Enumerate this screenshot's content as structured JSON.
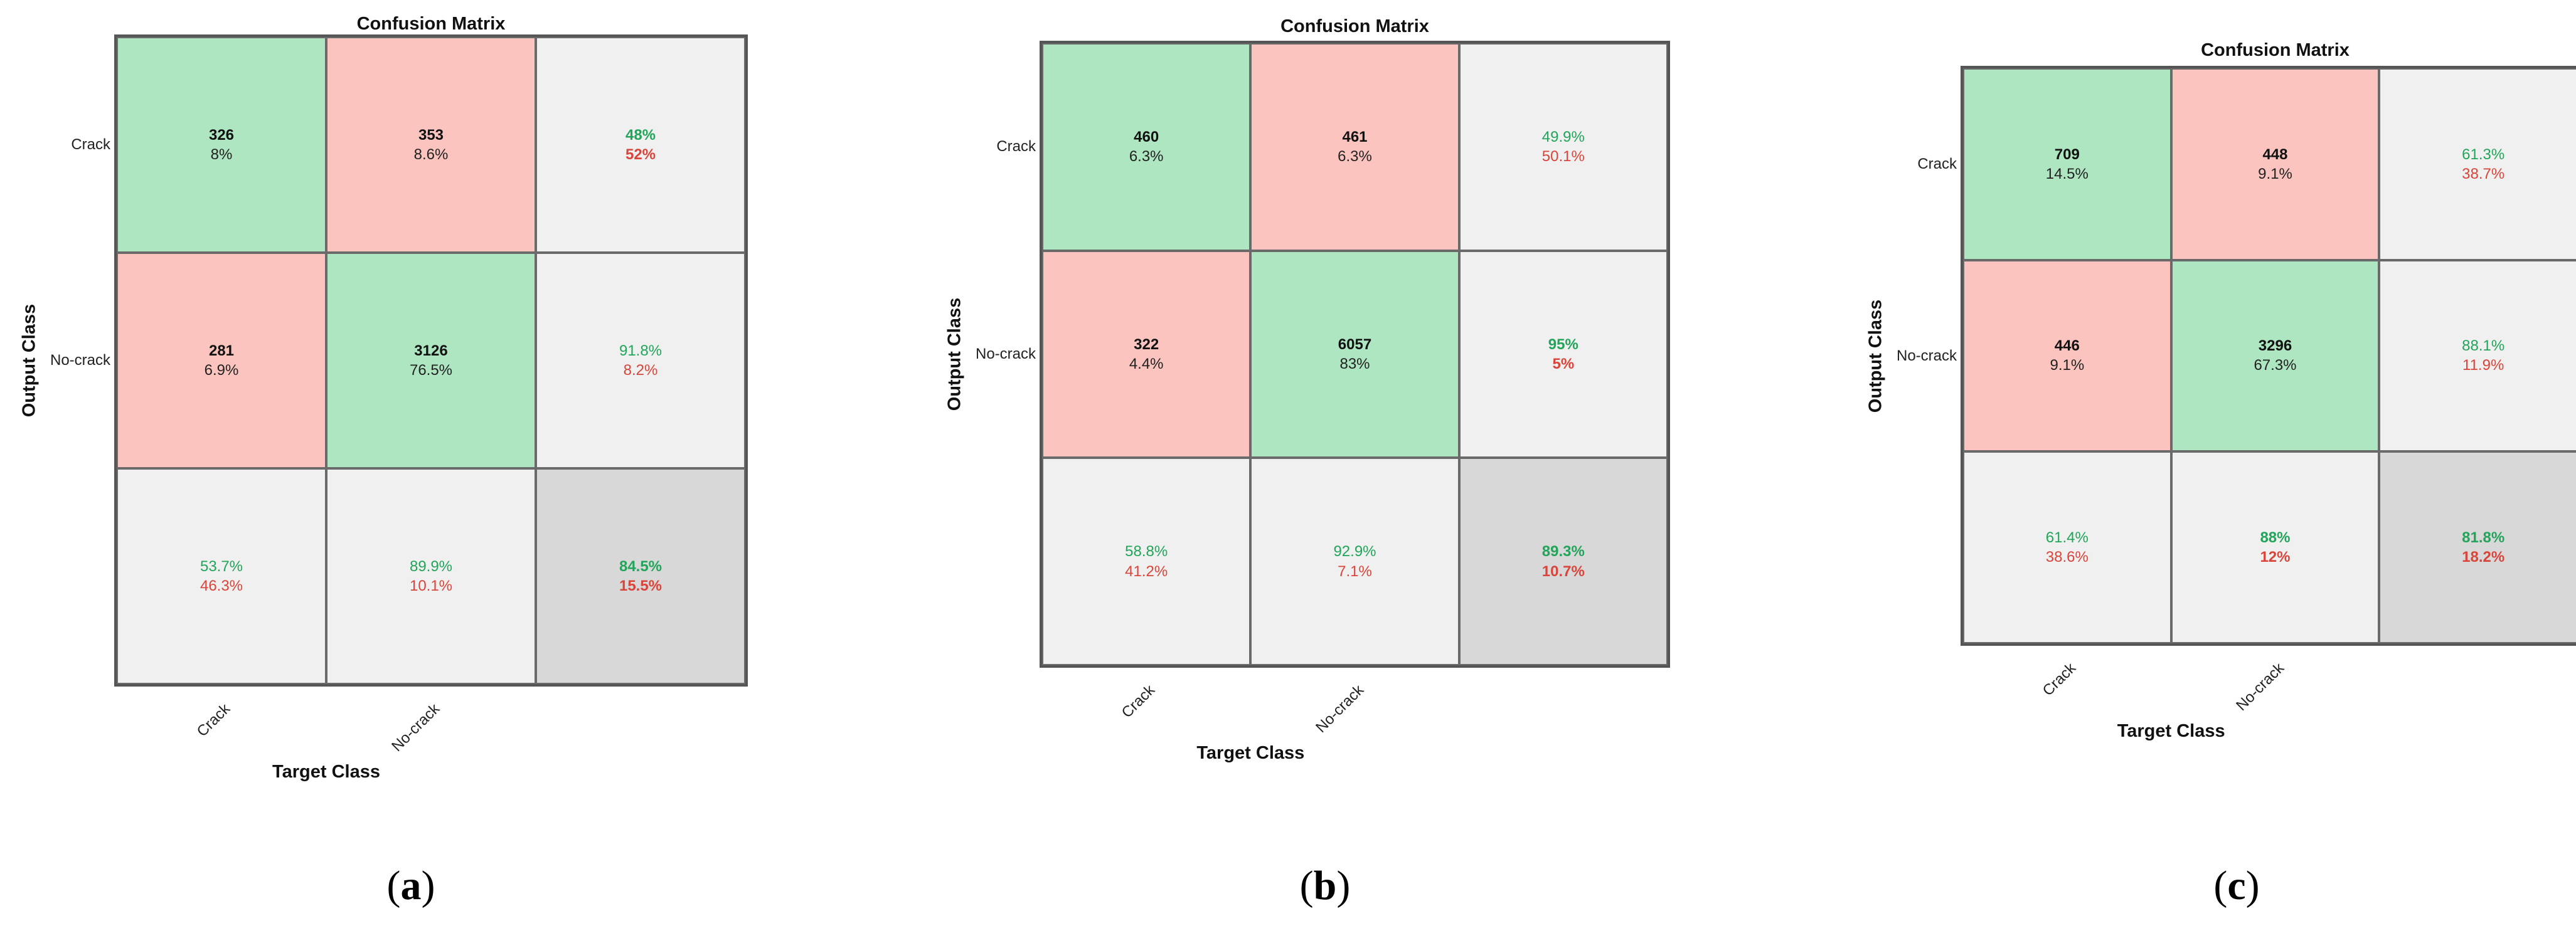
{
  "colors": {
    "diag": "#ade6c1",
    "offdiag": "#fbc4bf",
    "summary": "#f0f0f0",
    "overall": "#d8d8d8",
    "good_text": "#22a55a",
    "bad_text": "#d9453a"
  },
  "chart_data": [
    {
      "type": "table",
      "panel_label": "a",
      "title": "Confusion Matrix",
      "xlabel": "Target Class",
      "ylabel": "Output Class",
      "row_labels": [
        "Crack",
        "No-crack"
      ],
      "col_labels": [
        "Crack",
        "No-crack"
      ],
      "cells": [
        [
          {
            "count": "326",
            "pct": "8%"
          },
          {
            "count": "353",
            "pct": "8.6%"
          },
          {
            "good": "48%",
            "bad": "52%",
            "bold": true
          }
        ],
        [
          {
            "count": "281",
            "pct": "6.9%"
          },
          {
            "count": "3126",
            "pct": "76.5%"
          },
          {
            "good": "91.8%",
            "bad": "8.2%"
          }
        ],
        [
          {
            "good": "53.7%",
            "bad": "46.3%"
          },
          {
            "good": "89.9%",
            "bad": "10.1%"
          },
          {
            "good": "84.5%",
            "bad": "15.5%",
            "bold": true
          }
        ]
      ]
    },
    {
      "type": "table",
      "panel_label": "b",
      "title": "Confusion Matrix",
      "xlabel": "Target Class",
      "ylabel": "Output Class",
      "row_labels": [
        "Crack",
        "No-crack"
      ],
      "col_labels": [
        "Crack",
        "No-crack"
      ],
      "cells": [
        [
          {
            "count": "460",
            "pct": "6.3%"
          },
          {
            "count": "461",
            "pct": "6.3%"
          },
          {
            "good": "49.9%",
            "bad": "50.1%"
          }
        ],
        [
          {
            "count": "322",
            "pct": "4.4%"
          },
          {
            "count": "6057",
            "pct": "83%"
          },
          {
            "good": "95%",
            "bad": "5%",
            "bold": true
          }
        ],
        [
          {
            "good": "58.8%",
            "bad": "41.2%"
          },
          {
            "good": "92.9%",
            "bad": "7.1%"
          },
          {
            "good": "89.3%",
            "bad": "10.7%",
            "bold": true
          }
        ]
      ]
    },
    {
      "type": "table",
      "panel_label": "c",
      "title": "Confusion Matrix",
      "xlabel": "Target Class",
      "ylabel": "Output Class",
      "row_labels": [
        "Crack",
        "No-crack"
      ],
      "col_labels": [
        "Crack",
        "No-crack"
      ],
      "cells": [
        [
          {
            "count": "709",
            "pct": "14.5%"
          },
          {
            "count": "448",
            "pct": "9.1%"
          },
          {
            "good": "61.3%",
            "bad": "38.7%"
          }
        ],
        [
          {
            "count": "446",
            "pct": "9.1%"
          },
          {
            "count": "3296",
            "pct": "67.3%"
          },
          {
            "good": "88.1%",
            "bad": "11.9%"
          }
        ],
        [
          {
            "good": "61.4%",
            "bad": "38.6%"
          },
          {
            "good": "88%",
            "bad": "12%",
            "bold": true
          },
          {
            "good": "81.8%",
            "bad": "18.2%",
            "bold": true
          }
        ]
      ]
    }
  ]
}
